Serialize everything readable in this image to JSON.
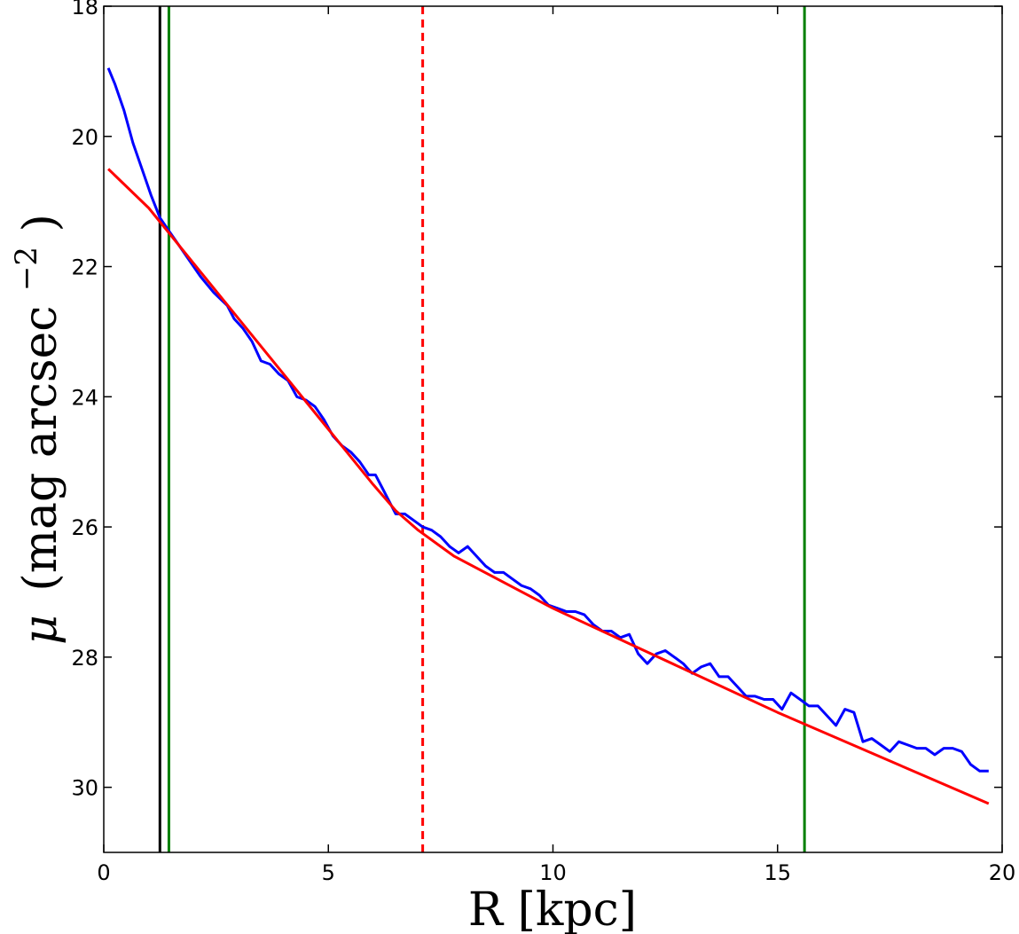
{
  "chart_data": {
    "type": "line",
    "xlabel": "R [kpc]",
    "ylabel": {
      "symbol": "μ",
      "text": "(mag arcsec",
      "exponent": "−2",
      "close": ")"
    },
    "xlim": [
      0,
      20
    ],
    "ylim": [
      31,
      18
    ],
    "y_inverted": true,
    "grid": false,
    "x_ticks": [
      0,
      5,
      10,
      15,
      20
    ],
    "x_tick_labels": [
      "0",
      "5",
      "10",
      "15",
      "20"
    ],
    "y_ticks": [
      18,
      20,
      22,
      24,
      26,
      28,
      30
    ],
    "y_tick_labels": [
      "18",
      "20",
      "22",
      "24",
      "26",
      "28",
      "30"
    ],
    "colors": {
      "profile": "#0000ff",
      "fit": "#ff0000",
      "limit": "#008000",
      "psf": "#000000",
      "break": "#ff0000"
    },
    "series": [
      {
        "kind": "line",
        "color": "#0000ff",
        "x": [
          0.1,
          0.25,
          0.45,
          0.65,
          0.85,
          1.05,
          1.25,
          1.45,
          1.65,
          1.9,
          2.15,
          2.45,
          2.75,
          2.9,
          3.1,
          3.3,
          3.5,
          3.7,
          3.9,
          4.1,
          4.3,
          4.5,
          4.7,
          4.9,
          5.1,
          5.3,
          5.5,
          5.7,
          5.9,
          6.05,
          6.2,
          6.35,
          6.5,
          6.7,
          6.9,
          7.1,
          7.3,
          7.5,
          7.7,
          7.9,
          8.1,
          8.3,
          8.5,
          8.7,
          8.9,
          9.1,
          9.3,
          9.5,
          9.7,
          9.9,
          10.1,
          10.3,
          10.5,
          10.7,
          10.9,
          11.1,
          11.3,
          11.5,
          11.7,
          11.9,
          12.1,
          12.3,
          12.5,
          12.7,
          12.9,
          13.1,
          13.3,
          13.5,
          13.7,
          13.9,
          14.1,
          14.3,
          14.5,
          14.7,
          14.9,
          15.1,
          15.3,
          15.5,
          15.7,
          15.9,
          16.1,
          16.3,
          16.5,
          16.7,
          16.9,
          17.1,
          17.3,
          17.5,
          17.7,
          17.9,
          18.1,
          18.3,
          18.5,
          18.7,
          18.9,
          19.1,
          19.3,
          19.5,
          19.7
        ],
        "y": [
          18.95,
          19.2,
          19.6,
          20.1,
          20.5,
          20.9,
          21.25,
          21.45,
          21.65,
          21.9,
          22.15,
          22.4,
          22.6,
          22.8,
          22.95,
          23.15,
          23.45,
          23.5,
          23.65,
          23.75,
          24.0,
          24.05,
          24.15,
          24.35,
          24.6,
          24.75,
          24.85,
          25.0,
          25.2,
          25.2,
          25.4,
          25.6,
          25.8,
          25.8,
          25.9,
          26.0,
          26.05,
          26.15,
          26.3,
          26.4,
          26.3,
          26.45,
          26.6,
          26.7,
          26.7,
          26.8,
          26.9,
          26.95,
          27.05,
          27.2,
          27.25,
          27.3,
          27.3,
          27.35,
          27.5,
          27.6,
          27.6,
          27.7,
          27.65,
          27.95,
          28.1,
          27.95,
          27.9,
          28.0,
          28.1,
          28.25,
          28.15,
          28.1,
          28.3,
          28.3,
          28.45,
          28.6,
          28.6,
          28.65,
          28.65,
          28.8,
          28.55,
          28.65,
          28.75,
          28.75,
          28.9,
          29.05,
          28.8,
          28.85,
          29.3,
          29.25,
          29.35,
          29.45,
          29.3,
          29.35,
          29.4,
          29.4,
          29.5,
          29.4,
          29.4,
          29.45,
          29.65,
          29.75,
          29.75
        ]
      },
      {
        "kind": "line",
        "color": "#ff0000",
        "x": [
          0.1,
          1.0,
          2.0,
          3.0,
          4.0,
          5.0,
          6.0,
          6.5,
          7.0,
          7.5,
          7.8,
          10.0,
          15.0,
          19.7
        ],
        "y": [
          20.5,
          21.1,
          21.95,
          22.8,
          23.65,
          24.5,
          25.35,
          25.75,
          26.05,
          26.3,
          26.45,
          27.25,
          28.85,
          30.25
        ]
      }
    ],
    "vertical_lines": [
      {
        "x": 1.25,
        "color": "#000000",
        "style": "solid"
      },
      {
        "x": 1.45,
        "color": "#008000",
        "style": "solid"
      },
      {
        "x": 7.1,
        "color": "#ff0000",
        "style": "dashed"
      },
      {
        "x": 15.6,
        "color": "#008000",
        "style": "solid"
      }
    ]
  }
}
